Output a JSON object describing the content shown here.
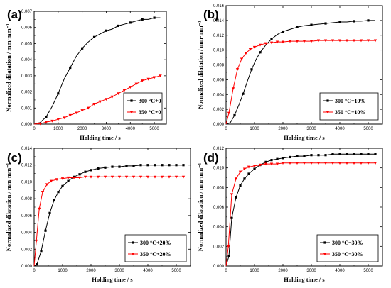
{
  "chart_data": [
    {
      "type": "line",
      "panel_label": "(a)",
      "xlabel": "Holding time / s",
      "ylabel": "Normalized dilatation / mm·mm⁻¹",
      "xlim": [
        0,
        5500
      ],
      "ylim": [
        0,
        0.007
      ],
      "xticks": [
        0,
        1000,
        2000,
        3000,
        4000,
        5000
      ],
      "xtick_labels": [
        "0",
        "1000",
        "2000",
        "3000",
        "4000",
        "5000"
      ],
      "yticks": [
        0,
        0.001,
        0.002,
        0.003,
        0.004,
        0.005,
        0.006,
        0.007
      ],
      "ytick_labels": [
        "0.000",
        "0.001",
        "0.002",
        "0.003",
        "0.004",
        "0.005",
        "0.006",
        "0.007"
      ],
      "legend_position": "bottom-right",
      "series": [
        {
          "name": "300 °C+0",
          "color": "#000000",
          "marker": "square",
          "x": [
            0,
            250,
            500,
            750,
            1000,
            1250,
            1500,
            1750,
            2000,
            2250,
            2500,
            2750,
            3000,
            3250,
            3500,
            3750,
            4000,
            4250,
            4500,
            4750,
            5000,
            5250
          ],
          "y": [
            0.0,
            0.0001,
            0.00045,
            0.0011,
            0.0019,
            0.0028,
            0.0035,
            0.0042,
            0.0047,
            0.0051,
            0.0054,
            0.0056,
            0.0058,
            0.0059,
            0.0061,
            0.0062,
            0.0063,
            0.0064,
            0.0065,
            0.0065,
            0.0066,
            0.0066
          ],
          "marker_every": 2
        },
        {
          "name": "350 °C+0",
          "color": "#ff0000",
          "marker": "triangle-down",
          "x": [
            0,
            250,
            500,
            750,
            1000,
            1250,
            1500,
            1750,
            2000,
            2250,
            2500,
            2750,
            3000,
            3250,
            3500,
            3750,
            4000,
            4250,
            4500,
            4750,
            5000,
            5250
          ],
          "y": [
            0.0,
            3e-05,
            0.00012,
            0.0002,
            0.0003,
            0.0004,
            0.00055,
            0.0007,
            0.00085,
            0.001,
            0.00125,
            0.0014,
            0.00155,
            0.0017,
            0.0019,
            0.0021,
            0.0023,
            0.0025,
            0.0027,
            0.0028,
            0.0029,
            0.003
          ],
          "marker_every": 1
        }
      ]
    },
    {
      "type": "line",
      "panel_label": "(b)",
      "xlabel": "Holding time / s",
      "ylabel": "Normalized dilatation / mm·mm⁻¹",
      "xlim": [
        0,
        5500
      ],
      "ylim": [
        0,
        0.016
      ],
      "xticks": [
        0,
        1000,
        2000,
        3000,
        4000,
        5000
      ],
      "xtick_labels": [
        "0",
        "1000",
        "2000",
        "3000",
        "4000",
        "5000"
      ],
      "yticks": [
        0,
        0.002,
        0.004,
        0.006,
        0.008,
        0.01,
        0.012,
        0.014,
        0.016
      ],
      "ytick_labels": [
        "0.000",
        "0.002",
        "0.004",
        "0.006",
        "0.008",
        "0.010",
        "0.012",
        "0.014",
        "0.016"
      ],
      "legend_position": "bottom-right",
      "series": [
        {
          "name": "300 °C+10%",
          "color": "#000000",
          "marker": "square",
          "x": [
            0,
            150,
            300,
            450,
            600,
            750,
            900,
            1050,
            1200,
            1400,
            1600,
            1800,
            2000,
            2250,
            2500,
            2750,
            3000,
            3250,
            3500,
            3750,
            4000,
            4250,
            4500,
            4750,
            5000,
            5250
          ],
          "y": [
            0.0,
            0.0002,
            0.0012,
            0.0026,
            0.0041,
            0.0058,
            0.0074,
            0.0087,
            0.0097,
            0.0107,
            0.0115,
            0.0121,
            0.0125,
            0.0128,
            0.0131,
            0.0133,
            0.0134,
            0.0135,
            0.0136,
            0.0137,
            0.0138,
            0.0138,
            0.0139,
            0.0139,
            0.014,
            0.014
          ],
          "marker_every": 2
        },
        {
          "name": "350 °C+10%",
          "color": "#ff0000",
          "marker": "triangle-down",
          "x": [
            0,
            100,
            250,
            400,
            550,
            700,
            850,
            1000,
            1200,
            1400,
            1600,
            1800,
            2000,
            2250,
            2500,
            2750,
            3000,
            3250,
            3500,
            3750,
            4000,
            4250,
            4500,
            4750,
            5000,
            5250
          ],
          "y": [
            0.0,
            0.0015,
            0.0048,
            0.0074,
            0.0088,
            0.0096,
            0.0101,
            0.0104,
            0.0107,
            0.0109,
            0.011,
            0.0111,
            0.0111,
            0.0112,
            0.0112,
            0.0112,
            0.0112,
            0.0113,
            0.0113,
            0.0113,
            0.0113,
            0.0113,
            0.0113,
            0.0113,
            0.0113,
            0.0113
          ],
          "marker_every": 1
        }
      ]
    },
    {
      "type": "line",
      "panel_label": "(c)",
      "xlabel": "Holding time / s",
      "ylabel": "Normalized dilatation / mm·mm⁻¹",
      "xlim": [
        0,
        5500
      ],
      "ylim": [
        0,
        0.014
      ],
      "xticks": [
        0,
        1000,
        2000,
        3000,
        4000,
        5000
      ],
      "xtick_labels": [
        "0",
        "1000",
        "2000",
        "3000",
        "4000",
        "5000"
      ],
      "yticks": [
        0,
        0.002,
        0.004,
        0.006,
        0.008,
        0.01,
        0.012,
        0.014
      ],
      "ytick_labels": [
        "0.000",
        "0.002",
        "0.004",
        "0.006",
        "0.008",
        "0.010",
        "0.012",
        "0.014"
      ],
      "legend_position": "bottom-right",
      "series": [
        {
          "name": "300 °C+20%",
          "color": "#000000",
          "marker": "square",
          "x": [
            0,
            100,
            250,
            400,
            550,
            700,
            850,
            1000,
            1200,
            1400,
            1600,
            1800,
            2000,
            2250,
            2500,
            2750,
            3000,
            3250,
            3500,
            3750,
            4000,
            4250,
            4500,
            4750,
            5000,
            5250
          ],
          "y": [
            0.0,
            0.0002,
            0.0018,
            0.0042,
            0.0063,
            0.0078,
            0.0088,
            0.0095,
            0.0101,
            0.0106,
            0.0109,
            0.0112,
            0.0114,
            0.0116,
            0.0117,
            0.0118,
            0.0118,
            0.0119,
            0.0119,
            0.012,
            0.012,
            0.012,
            0.012,
            0.012,
            0.012,
            0.012
          ],
          "marker_every": 1
        },
        {
          "name": "350 °C+20%",
          "color": "#ff0000",
          "marker": "triangle-down",
          "x": [
            0,
            80,
            180,
            300,
            450,
            600,
            800,
            1000,
            1200,
            1400,
            1600,
            1800,
            2000,
            2250,
            2500,
            2750,
            3000,
            3250,
            3500,
            3750,
            4000,
            4250,
            4500,
            4750,
            5000,
            5250
          ],
          "y": [
            0.0,
            0.003,
            0.0068,
            0.0088,
            0.0097,
            0.0101,
            0.0103,
            0.0104,
            0.0105,
            0.0105,
            0.0105,
            0.0106,
            0.0106,
            0.0106,
            0.0106,
            0.0106,
            0.0106,
            0.0106,
            0.0106,
            0.0106,
            0.0106,
            0.0106,
            0.0106,
            0.0106,
            0.0106,
            0.0106
          ],
          "marker_every": 1
        }
      ]
    },
    {
      "type": "line",
      "panel_label": "(d)",
      "xlabel": "Holding time / s",
      "ylabel": "Normalized dilatation / mm·mm⁻¹",
      "xlim": [
        0,
        5500
      ],
      "ylim": [
        0,
        0.012
      ],
      "xticks": [
        0,
        1000,
        2000,
        3000,
        4000,
        5000
      ],
      "xtick_labels": [
        "0",
        "1000",
        "2000",
        "3000",
        "4000",
        "5000"
      ],
      "yticks": [
        0,
        0.002,
        0.004,
        0.006,
        0.008,
        0.01,
        0.012
      ],
      "ytick_labels": [
        "0.000",
        "0.002",
        "0.004",
        "0.006",
        "0.008",
        "0.010",
        "0.012"
      ],
      "legend_position": "bottom-right",
      "series": [
        {
          "name": "300 °C+30%",
          "color": "#000000",
          "marker": "square",
          "x": [
            0,
            100,
            200,
            350,
            500,
            650,
            800,
            1000,
            1200,
            1400,
            1600,
            1800,
            2000,
            2250,
            2500,
            2750,
            3000,
            3250,
            3500,
            3750,
            4000,
            4250,
            4500,
            4750,
            5000,
            5250
          ],
          "y": [
            0.0,
            0.001,
            0.0049,
            0.007,
            0.0082,
            0.0089,
            0.0094,
            0.0099,
            0.0103,
            0.0106,
            0.0108,
            0.0109,
            0.011,
            0.0111,
            0.0112,
            0.0112,
            0.0113,
            0.0113,
            0.0113,
            0.0114,
            0.0114,
            0.0114,
            0.0114,
            0.0114,
            0.0114,
            0.0114
          ],
          "marker_every": 1
        },
        {
          "name": "350 °C+30%",
          "color": "#ff0000",
          "marker": "triangle-down",
          "x": [
            0,
            80,
            200,
            350,
            500,
            650,
            800,
            1000,
            1200,
            1400,
            1600,
            1800,
            2000,
            2250,
            2500,
            2750,
            3000,
            3250,
            3500,
            3750,
            4000,
            4250,
            4500,
            4750,
            5000,
            5250
          ],
          "y": [
            0.0,
            0.002,
            0.0073,
            0.0089,
            0.0096,
            0.0099,
            0.0101,
            0.0102,
            0.0103,
            0.0104,
            0.0104,
            0.0104,
            0.0105,
            0.0105,
            0.0105,
            0.0105,
            0.0105,
            0.0105,
            0.0105,
            0.0105,
            0.0105,
            0.0105,
            0.0105,
            0.0105,
            0.0105,
            0.0105
          ],
          "marker_every": 1
        }
      ]
    }
  ]
}
